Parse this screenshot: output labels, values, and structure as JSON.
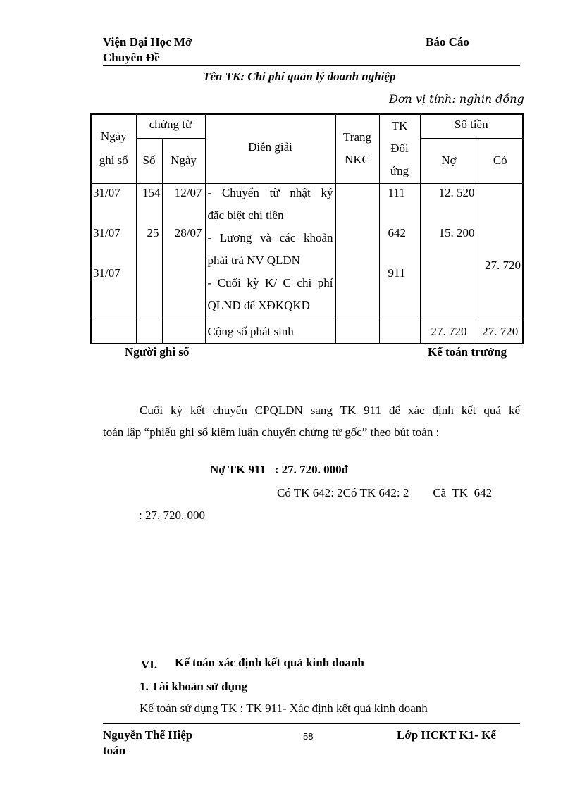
{
  "header": {
    "left_line1": "Viện Đại Học Mở",
    "left_line2": "Chuyên Đề",
    "right": "Báo Cáo"
  },
  "ledger": {
    "title": "Tên TK: Chi phí quản lý doanh nghiệp",
    "unit": "Đơn vị tính: nghìn đồng",
    "columns": {
      "ngay_ghi_so_1": "Ngày",
      "ngay_ghi_so_2": "ghi sổ",
      "chung_tu": "chứng từ",
      "so": "Số",
      "ngay": "Ngày",
      "dien_giai": "Diễn giải",
      "trang_1": "Trang",
      "trang_2": "NKC",
      "tk_1": "TK",
      "tk_2": "Đối",
      "tk_3": "ứng",
      "so_tien": "Số tiền",
      "no": "Nợ",
      "co": "Có"
    },
    "rows": [
      {
        "ngay_ghi_so": "31/07",
        "so": "154",
        "ngay": "12/07",
        "dien_giai": [
          "- Chuyển từ nhật ký",
          "đặc biệt chi tiền"
        ],
        "tk": "111",
        "no": "12. 520",
        "co": ""
      },
      {
        "ngay_ghi_so": "31/07",
        "so": "25",
        "ngay": "28/07",
        "dien_giai": [
          "- Lương và các khoản",
          "phải trả NV QLDN"
        ],
        "tk": "642",
        "no": "15. 200",
        "co": ""
      },
      {
        "ngay_ghi_so": "31/07",
        "so": "",
        "ngay": "",
        "dien_giai": [
          "- Cuối kỳ K/ C chi phí",
          "QLND để XĐKQKD"
        ],
        "tk": "911",
        "no": "",
        "co": "27. 720"
      }
    ],
    "total": {
      "label": "Cộng số phát sinh",
      "no": "27. 720",
      "co": "27. 720"
    },
    "sign_left": "Người ghi sổ",
    "sign_right": "Kế toán trưởng"
  },
  "body": {
    "para_line1": "Cuối kỳ kết chuyển CPQLDN sang TK 911 để xác định kết quả kế",
    "para_line2": "toán lập “phiếu ghi sổ kiêm luân chuyển chứng từ gốc” theo bút toán :",
    "entry_debit": "Nợ TK 911   : 27. 720. 000đ",
    "entry_credit": "Có TK 642: 2Có TK 642: 2        Cã  TK  642",
    "entry_credit_cont": ": 27. 720. 000",
    "section_num": "VI.",
    "section_title": "Kế toán xác định kết quả kinh doanh",
    "subsection": "1. Tài khoản sử dụng",
    "text": "Kế toán sử dụng TK : TK 911- Xác định kết quả kinh  doanh"
  },
  "footer": {
    "author_line1": "Nguyễn Thế Hiệp",
    "author_line2": "toán",
    "page": "58",
    "class": "Lớp HCKT K1- Kế"
  }
}
